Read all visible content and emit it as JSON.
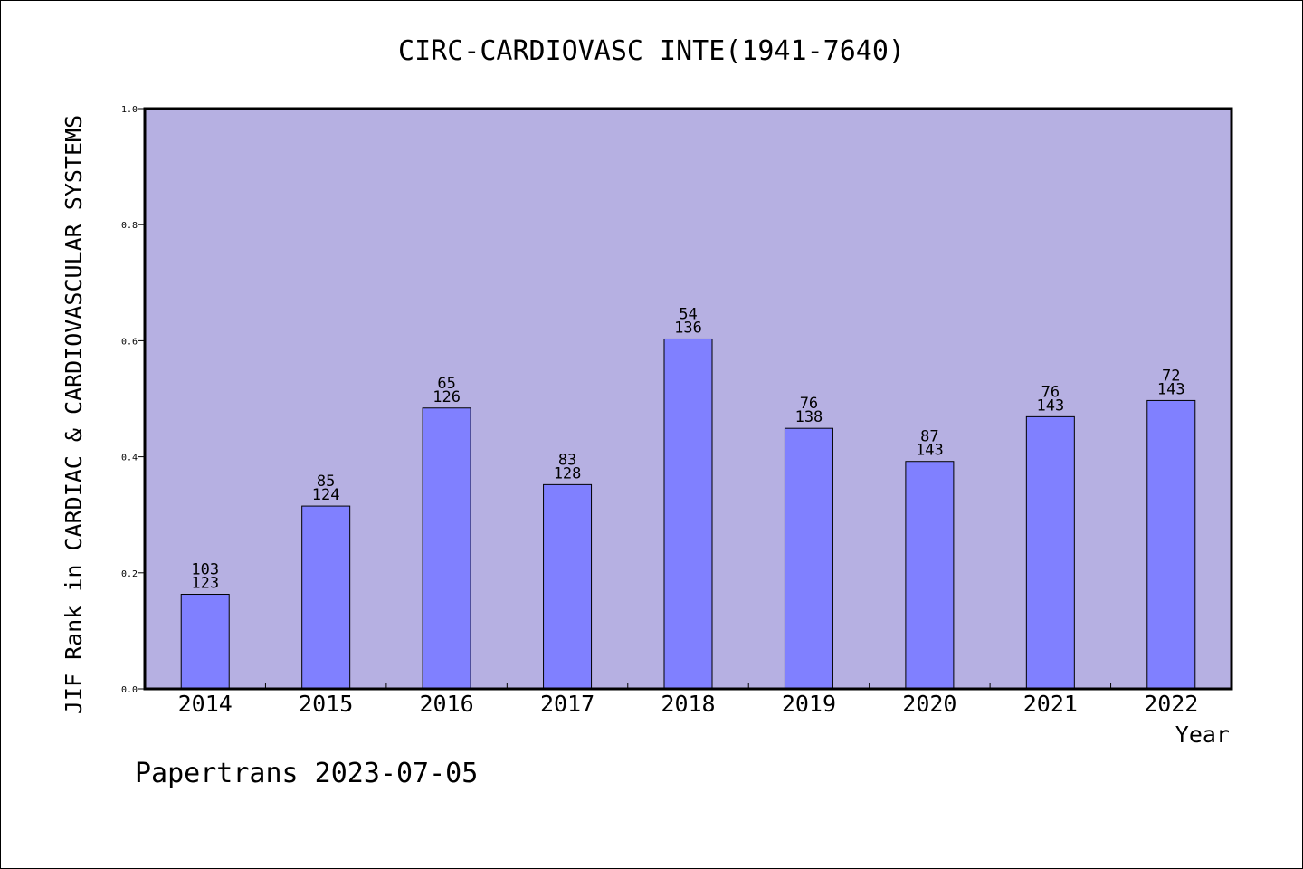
{
  "chart_data": {
    "type": "bar",
    "title": "CIRC-CARDIOVASC INTE(1941-7640)",
    "xlabel": "Year",
    "ylabel": "JIF Rank in CARDIAC & CARDIOVASCULAR SYSTEMS",
    "ylim": [
      0,
      1.0
    ],
    "yticks": [
      "0.0",
      "0.2",
      "0.4",
      "0.6",
      "0.8",
      "1.0"
    ],
    "grid": false,
    "categories": [
      "2014",
      "2015",
      "2016",
      "2017",
      "2018",
      "2019",
      "2020",
      "2021",
      "2022"
    ],
    "values": [
      0.163,
      0.315,
      0.484,
      0.352,
      0.603,
      0.449,
      0.392,
      0.469,
      0.497
    ],
    "data_labels": [
      [
        "103",
        "123"
      ],
      [
        "85",
        "124"
      ],
      [
        "65",
        "126"
      ],
      [
        "83",
        "128"
      ],
      [
        "54",
        "136"
      ],
      [
        "76",
        "138"
      ],
      [
        "87",
        "143"
      ],
      [
        "76",
        "143"
      ],
      [
        "72",
        "143"
      ]
    ],
    "colors": {
      "plot_background": "#b6b0e2",
      "bar_fill": "#8080ff",
      "bar_stroke": "#000000",
      "axis": "#000000"
    }
  },
  "footer": {
    "credit": "Papertrans 2023-07-05"
  }
}
